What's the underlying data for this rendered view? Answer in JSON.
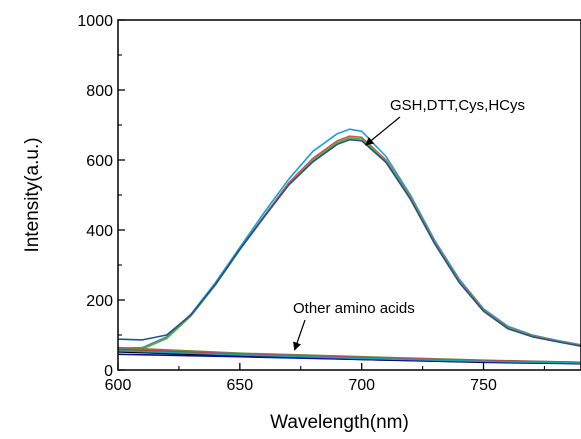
{
  "chart_data": {
    "type": "line",
    "title": "",
    "xlabel": "Wavelength(nm)",
    "ylabel": "Intensity(a.u.)",
    "xlim": [
      600,
      790
    ],
    "ylim": [
      0,
      1000
    ],
    "xticks": [
      600,
      650,
      700,
      750
    ],
    "yticks": [
      0,
      200,
      400,
      600,
      800,
      1000
    ],
    "grid": false,
    "legend": "none",
    "annotations": [
      {
        "text": "GSH,DTT,Cys,HCys",
        "target": [
          700,
          660
        ]
      },
      {
        "text": "Other amino acids",
        "target": [
          670,
          40
        ]
      }
    ],
    "series": [
      {
        "color": "#1f9fd6",
        "x": [
          600,
          610,
          620,
          630,
          640,
          650,
          660,
          670,
          680,
          690,
          695,
          700,
          710,
          720,
          730,
          740,
          750,
          760,
          770,
          780,
          790
        ],
        "y": [
          62,
          64,
          95,
          160,
          250,
          350,
          450,
          545,
          625,
          675,
          688,
          682,
          610,
          500,
          370,
          260,
          175,
          125,
          100,
          85,
          72
        ]
      },
      {
        "color": "#d9534f",
        "x": [
          600,
          610,
          620,
          630,
          640,
          650,
          660,
          670,
          680,
          690,
          695,
          700,
          710,
          720,
          730,
          740,
          750,
          760,
          770,
          780,
          790
        ],
        "y": [
          60,
          62,
          92,
          156,
          245,
          345,
          440,
          535,
          605,
          655,
          668,
          665,
          600,
          495,
          365,
          255,
          172,
          122,
          98,
          83,
          70
        ]
      },
      {
        "color": "#4caf50",
        "x": [
          600,
          610,
          620,
          630,
          640,
          650,
          660,
          670,
          680,
          690,
          695,
          700,
          710,
          720,
          730,
          740,
          750,
          760,
          770,
          780,
          790
        ],
        "y": [
          58,
          60,
          90,
          155,
          243,
          343,
          437,
          530,
          600,
          650,
          663,
          660,
          597,
          492,
          362,
          252,
          170,
          120,
          96,
          82,
          69
        ]
      },
      {
        "color": "#2f4f7f",
        "x": [
          600,
          610,
          620,
          630,
          640,
          650,
          660,
          670,
          680,
          690,
          695,
          700,
          710,
          720,
          730,
          740,
          750,
          760,
          770,
          780,
          790
        ],
        "y": [
          88,
          86,
          100,
          158,
          245,
          345,
          438,
          528,
          595,
          645,
          658,
          655,
          593,
          488,
          360,
          250,
          168,
          118,
          95,
          81,
          68
        ]
      },
      {
        "color": "#000000",
        "x": [
          600,
          650,
          700,
          750,
          790
        ],
        "y": [
          52,
          40,
          30,
          22,
          18
        ]
      },
      {
        "color": "#0a0a8a",
        "x": [
          600,
          650,
          700,
          750,
          790
        ],
        "y": [
          45,
          38,
          30,
          23,
          19
        ]
      },
      {
        "color": "#6a8a2a",
        "x": [
          600,
          650,
          700,
          750,
          790
        ],
        "y": [
          64,
          48,
          38,
          28,
          22
        ]
      },
      {
        "color": "#b05090",
        "x": [
          600,
          650,
          700,
          750,
          790
        ],
        "y": [
          60,
          46,
          36,
          27,
          22
        ]
      },
      {
        "color": "#c0392b",
        "x": [
          600,
          650,
          700,
          750,
          790
        ],
        "y": [
          58,
          44,
          34,
          26,
          21
        ]
      },
      {
        "color": "#17a2b8",
        "x": [
          600,
          650,
          700,
          750,
          790
        ],
        "y": [
          55,
          43,
          33,
          25,
          20
        ]
      }
    ]
  }
}
